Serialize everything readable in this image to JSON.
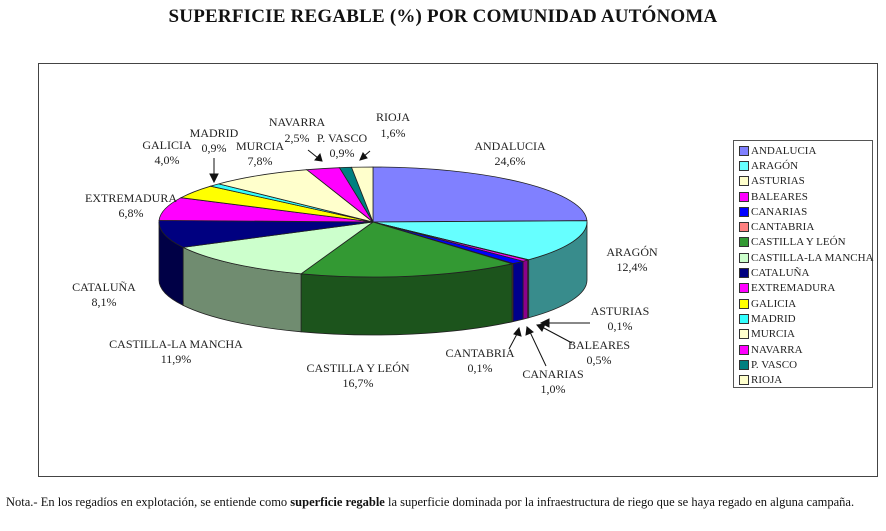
{
  "title": "SUPERFICIE REGABLE (%) POR COMUNIDAD AUTÓNOMA",
  "chart_data": {
    "type": "pie",
    "style": "3d-exploded-pie",
    "title": "SUPERFICIE REGABLE (%) POR COMUNIDAD AUTÓNOMA",
    "unit": "%",
    "legend_position": "right",
    "categories": [
      "ANDALUCIA",
      "ARAGÓN",
      "ASTURIAS",
      "BALEARES",
      "CANARIAS",
      "CANTABRIA",
      "CASTILLA Y LEÓN",
      "CASTILLA-LA MANCHA",
      "CATALUÑA",
      "EXTREMADURA",
      "GALICIA",
      "MADRID",
      "MURCIA",
      "NAVARRA",
      "P. VASCO",
      "RIOJA"
    ],
    "values": [
      24.6,
      12.4,
      0.1,
      0.5,
      1.0,
      0.1,
      16.7,
      11.9,
      8.1,
      6.8,
      4.0,
      0.9,
      7.8,
      2.5,
      0.9,
      1.6
    ],
    "value_labels": [
      "24,6%",
      "12,4%",
      "0,1%",
      "0,5%",
      "1,0%",
      "0,1%",
      "16,7%",
      "11,9%",
      "8,1%",
      "6,8%",
      "4,0%",
      "0,9%",
      "7,8%",
      "2,5%",
      "0,9%",
      "1,6%"
    ],
    "colors": [
      "#8080ff",
      "#66ffff",
      "#ffffcc",
      "#ff00ff",
      "#0000ff",
      "#ff8080",
      "#339933",
      "#ccffcc",
      "#000080",
      "#ff00ff",
      "#ffff00",
      "#33ffff",
      "#ffffcc",
      "#ff00ff",
      "#008080",
      "#ffffcc"
    ]
  },
  "labels": {
    "andalucia": {
      "name": "ANDALUCIA",
      "value": "24,6%"
    },
    "aragon": {
      "name": "ARAGÓN",
      "value": "12,4%"
    },
    "asturias": {
      "name": "ASTURIAS",
      "value": "0,1%"
    },
    "baleares": {
      "name": "BALEARES",
      "value": "0,5%"
    },
    "canarias": {
      "name": "CANARIAS",
      "value": "1,0%"
    },
    "cantabria": {
      "name": "CANTABRIA",
      "value": "0,1%"
    },
    "castilla_leon": {
      "name": "CASTILLA Y LEÓN",
      "value": "16,7%"
    },
    "castilla_mancha": {
      "name": "CASTILLA-LA MANCHA",
      "value": "11,9%"
    },
    "cataluna": {
      "name": "CATALUÑA",
      "value": "8,1%"
    },
    "extremadura": {
      "name": "EXTREMADURA",
      "value": "6,8%"
    },
    "galicia": {
      "name": "GALICIA",
      "value": "4,0%"
    },
    "madrid": {
      "name": "MADRID",
      "value": "0,9%"
    },
    "murcia": {
      "name": "MURCIA",
      "value": "7,8%"
    },
    "navarra": {
      "name": "NAVARRA",
      "value": "2,5%"
    },
    "pvasco": {
      "name": "P. VASCO",
      "value": "0,9%"
    },
    "rioja": {
      "name": "RIOJA",
      "value": "1,6%"
    }
  },
  "legend": [
    {
      "label": "ANDALUCIA",
      "color": "#8080ff"
    },
    {
      "label": "ARAGÓN",
      "color": "#66ffff"
    },
    {
      "label": "ASTURIAS",
      "color": "#ffffcc"
    },
    {
      "label": "BALEARES",
      "color": "#ff00ff"
    },
    {
      "label": "CANARIAS",
      "color": "#0000ff"
    },
    {
      "label": "CANTABRIA",
      "color": "#ff8080"
    },
    {
      "label": "CASTILLA Y LEÓN",
      "color": "#339933"
    },
    {
      "label": "CASTILLA-LA MANCHA",
      "color": "#ccffcc"
    },
    {
      "label": "CATALUÑA",
      "color": "#000080"
    },
    {
      "label": "EXTREMADURA",
      "color": "#ff00ff"
    },
    {
      "label": "GALICIA",
      "color": "#ffff00"
    },
    {
      "label": "MADRID",
      "color": "#33ffff"
    },
    {
      "label": "MURCIA",
      "color": "#ffffcc"
    },
    {
      "label": "NAVARRA",
      "color": "#ff00ff"
    },
    {
      "label": "P. VASCO",
      "color": "#008080"
    },
    {
      "label": "RIOJA",
      "color": "#ffffcc"
    }
  ],
  "note": {
    "prefix": "Nota.- En los regadíos en explotación, se entiende como ",
    "bold": "superficie regable",
    "suffix": " la superficie dominada por la infraestructura de riego que se haya regado en alguna campaña."
  }
}
